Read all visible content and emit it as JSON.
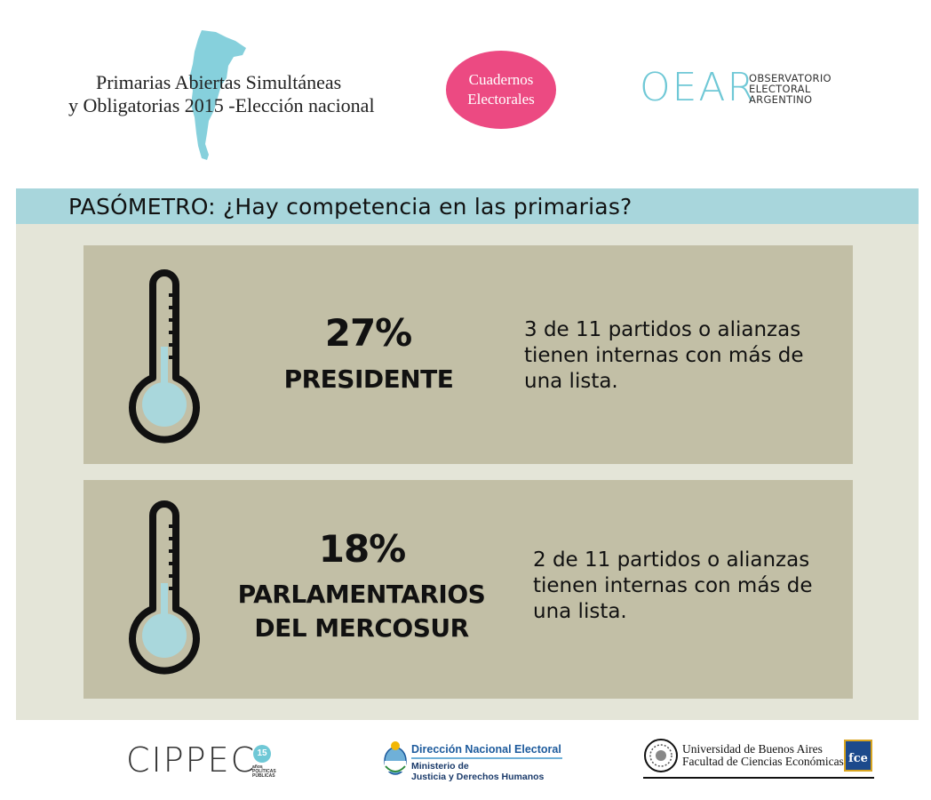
{
  "header": {
    "title_line1": "Primarias Abiertas Simultáneas",
    "title_line2": "y Obligatorias 2015 -Elección nacional",
    "badge_line1": "Cuadernos",
    "badge_line2": "Electorales",
    "oear_logo": "OEAR",
    "oear_line1": "OBSERVATORIO",
    "oear_line2": "ELECTORAL",
    "oear_line3": "ARGENTINO"
  },
  "banner": {
    "title": "PASÓMETRO: ¿Hay competencia en las primarias?"
  },
  "cards": [
    {
      "percent": "27%",
      "category_line1": "PRESIDENTE",
      "category_line2": "",
      "desc_line1": "3 de 11 partidos o alianzas",
      "desc_line2": "tienen internas con más de",
      "desc_line3": "una lista.",
      "fill_level": 0.27
    },
    {
      "percent": "18%",
      "category_line1": "PARLAMENTARIOS",
      "category_line2": "DEL MERCOSUR",
      "desc_line1": "2 de 11 partidos o alianzas",
      "desc_line2": "tienen internas con más de",
      "desc_line3": "una lista.",
      "fill_level": 0.18
    }
  ],
  "footer": {
    "cippec": "CIPPEC",
    "cippec_badge": "15",
    "cippec_sub1": "años",
    "cippec_sub2": "POLÍTICAS",
    "cippec_sub3": "PÚBLICAS",
    "dne_title": "Dirección Nacional Electoral",
    "dne_sub1": "Ministerio de",
    "dne_sub2": "Justicia y Derechos Humanos",
    "uba_line1": "Universidad de Buenos Aires",
    "uba_line2": "Facultad de Ciencias Económicas",
    "fce_badge": "fce"
  },
  "colors": {
    "accent_pink": "#ec4a82",
    "accent_blue": "#a8d6dc",
    "card_bg": "#c2bfa6",
    "panel_bg": "#e4e5d8",
    "mercury": "#a9d7dc"
  },
  "icons": [
    "argentina-map-icon",
    "thermometer-icon",
    "argentina-seal-icon",
    "uba-seal-icon"
  ]
}
